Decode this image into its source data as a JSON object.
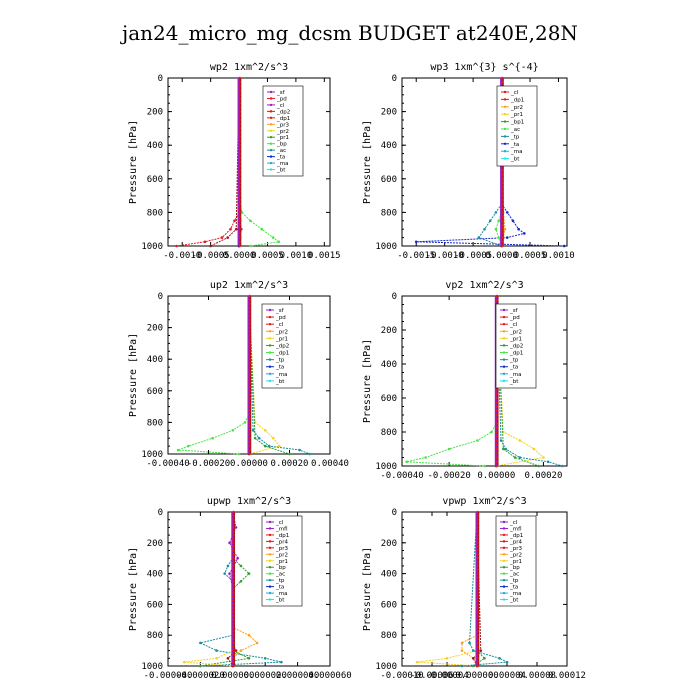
{
  "figure": {
    "title": "jan24_micro_mg_dcsm  BUDGET at240E,28N"
  },
  "colors": {
    "purple": "#9a1ec8",
    "red": "#e8141e",
    "orange": "#ff9f1c",
    "yellow": "#f5d21e",
    "green": "#2ea02e",
    "lightgreen": "#44e644",
    "teal": "#1a8fa0",
    "blue": "#1428c8",
    "skyblue": "#28a6e0",
    "navy": "#000080",
    "darkred": "#a01414",
    "cyan": "#1ee6e6"
  },
  "chart_data": [
    {
      "type": "line",
      "title": "wp2  1xm^2/s^3",
      "ylabel": "Pressure [hPa]",
      "ylim": [
        1000,
        0
      ],
      "yticks": [
        "0",
        "200",
        "400",
        "600",
        "800",
        "1000"
      ],
      "xlim": [
        -0.00125,
        0.0016
      ],
      "xticks": [
        -0.001,
        -0.0005,
        0.0,
        0.0005,
        0.001,
        0.0015
      ],
      "xtick_labels": [
        "-0.0010",
        "-0.0005",
        "0.0000",
        "0.0005",
        "0.0010",
        "0.0015"
      ],
      "legend": [
        "_sf",
        "_pd",
        "_cl",
        "_dp2",
        "_dp1",
        "_pr3",
        "_pr2",
        "_pr1",
        "_bp",
        "_ac",
        "_ta",
        "_ma",
        "_bt"
      ],
      "legend_colors": [
        "purple",
        "red",
        "purple",
        "red",
        "red",
        "orange",
        "yellow",
        "green",
        "lightgreen",
        "teal",
        "blue",
        "skyblue",
        "cyan"
      ],
      "series": [
        {
          "name": "_pr1",
          "color": "lightgreen",
          "p": [
            0,
            700,
            800,
            850,
            900,
            950,
            975,
            1000
          ],
          "values": [
            0,
            0,
            5e-05,
            0.0002,
            0.0004,
            0.0006,
            0.0007,
            0.0002
          ]
        },
        {
          "name": "_dp1",
          "color": "red",
          "p": [
            0,
            800,
            850,
            900,
            950,
            975,
            1000
          ],
          "values": [
            0,
            0,
            -8e-05,
            -0.00015,
            -0.0003,
            -0.0006,
            -0.0011
          ]
        },
        {
          "name": "_dp2",
          "color": "darkred",
          "p": [
            0,
            900,
            950,
            1000
          ],
          "values": [
            0,
            -5e-05,
            -0.0002,
            -0.0005
          ]
        },
        {
          "name": "_pd",
          "color": "purple",
          "p": [
            0,
            850,
            900,
            950,
            1000
          ],
          "values": [
            0,
            2e-05,
            4e-05,
            2e-05,
            0.0
          ]
        },
        {
          "name": "_bt",
          "color": "navy",
          "p": [
            0,
            1000
          ],
          "values": [
            0,
            0
          ]
        }
      ]
    },
    {
      "type": "line",
      "title": "wp3  1xm^{3} s^{-4}",
      "ylabel": "Pressure [hPa]",
      "ylim": [
        1000,
        0
      ],
      "yticks": [
        "0",
        "200",
        "400",
        "600",
        "800",
        "1000"
      ],
      "xlim": [
        -0.00175,
        0.00115
      ],
      "xticks": [
        -0.0015,
        -0.001,
        -0.0005,
        0.0,
        0.0005,
        0.001
      ],
      "xtick_labels": [
        "-0.0015",
        "-0.0010",
        "-0.0005",
        "0.0000",
        "0.0005",
        "0.0010"
      ],
      "legend": [
        "_cl",
        "_dp1",
        "_pr2",
        "_pr1",
        "_bp1",
        "_ac",
        "_tp",
        "_ta",
        "_ma",
        "_bt"
      ],
      "legend_colors": [
        "red",
        "red",
        "orange",
        "yellow",
        "green",
        "lightgreen",
        "teal",
        "blue",
        "skyblue",
        "cyan"
      ],
      "series": [
        {
          "name": "_ta",
          "color": "blue",
          "p": [
            0,
            750,
            800,
            850,
            900,
            925,
            950,
            975,
            1000
          ],
          "values": [
            0,
            0,
            0.0001,
            0.0002,
            0.0003,
            0.0004,
            0.0001,
            -0.0015,
            0.0011
          ]
        },
        {
          "name": "_tp",
          "color": "teal",
          "p": [
            0,
            750,
            800,
            850,
            900,
            950,
            1000
          ],
          "values": [
            0,
            0,
            -0.0001,
            -0.0002,
            -0.0003,
            -0.0004,
            0.0
          ]
        },
        {
          "name": "_ac",
          "color": "lightgreen",
          "p": [
            0,
            800,
            850,
            900,
            950,
            1000
          ],
          "values": [
            0,
            0,
            -5e-05,
            -0.0001,
            -5e-05,
            0.0
          ]
        },
        {
          "name": "_pr2",
          "color": "orange",
          "p": [
            0,
            800,
            900,
            950,
            1000
          ],
          "values": [
            0,
            3e-05,
            6e-05,
            3e-05,
            0.0
          ]
        },
        {
          "name": "_cl",
          "color": "darkred",
          "p": [
            0,
            1000
          ],
          "values": [
            0,
            0
          ]
        }
      ]
    },
    {
      "type": "line",
      "title": "up2  1xm^2/s^3",
      "ylabel": "Pressure [hPa]",
      "ylim": [
        1000,
        0
      ],
      "yticks": [
        "0",
        "200",
        "400",
        "600",
        "800",
        "1000"
      ],
      "xlim": [
        -0.0004,
        0.0004
      ],
      "xticks": [
        -0.0004,
        -0.0002,
        0.0,
        0.0002,
        0.0004
      ],
      "xtick_labels": [
        "-0.00040",
        "-0.00020",
        "0.00000",
        "0.00020",
        "0.00040"
      ],
      "legend": [
        "_sf",
        "_pd",
        "_cl",
        "_pr2",
        "_pr1",
        "_dp2",
        "_dp1",
        "_tp",
        "_ta",
        "_ma",
        "_bt"
      ],
      "legend_colors": [
        "purple",
        "red",
        "red",
        "orange",
        "yellow",
        "green",
        "lightgreen",
        "teal",
        "blue",
        "skyblue",
        "cyan"
      ],
      "series": [
        {
          "name": "_dp1",
          "color": "lightgreen",
          "p": [
            0,
            750,
            800,
            850,
            900,
            950,
            975,
            1000
          ],
          "values": [
            0,
            0,
            -2e-05,
            -8e-05,
            -0.00018,
            -0.0003,
            -0.00035,
            -5e-05
          ]
        },
        {
          "name": "_pr1",
          "color": "yellow",
          "p": [
            0,
            800,
            850,
            900,
            950,
            1000
          ],
          "values": [
            0,
            3e-05,
            8e-05,
            0.00012,
            0.00015,
            0.0
          ]
        },
        {
          "name": "_tp",
          "color": "teal",
          "p": [
            0,
            850,
            900,
            950,
            975,
            1000
          ],
          "values": [
            0,
            2e-05,
            5e-05,
            0.0001,
            0.00025,
            0.0003
          ]
        },
        {
          "name": "_dp2",
          "color": "green",
          "p": [
            0,
            900,
            950,
            1000
          ],
          "values": [
            0,
            3e-05,
            8e-05,
            0.0002
          ]
        },
        {
          "name": "_cl",
          "color": "darkred",
          "p": [
            0,
            1000
          ],
          "values": [
            0,
            0
          ]
        }
      ]
    },
    {
      "type": "line",
      "title": "vp2  1xm^2/s^3",
      "ylabel": "Pressure [hPa]",
      "ylim": [
        1000,
        0
      ],
      "yticks": [
        "0",
        "200",
        "400",
        "600",
        "800",
        "1000"
      ],
      "xlim": [
        -0.0004,
        0.0003
      ],
      "xticks": [
        -0.0004,
        -0.0002,
        0.0,
        0.0002
      ],
      "xtick_labels": [
        "-0.00040",
        "-0.00020",
        "0.00000",
        "0.00020"
      ],
      "legend": [
        "_sf",
        "_pd",
        "_cl",
        "_pr2",
        "_pr1",
        "_dp2",
        "_dp1",
        "_tp",
        "_ta",
        "_ma",
        "_bt"
      ],
      "legend_colors": [
        "purple",
        "red",
        "red",
        "orange",
        "yellow",
        "green",
        "lightgreen",
        "teal",
        "blue",
        "skyblue",
        "cyan"
      ],
      "series": [
        {
          "name": "_dp1",
          "color": "lightgreen",
          "p": [
            0,
            750,
            800,
            850,
            900,
            950,
            975,
            1000
          ],
          "values": [
            0,
            0,
            -2e-05,
            -8e-05,
            -0.0002,
            -0.0003,
            -0.00038,
            -5e-05
          ]
        },
        {
          "name": "_pr1",
          "color": "yellow",
          "p": [
            0,
            800,
            850,
            900,
            950,
            1000
          ],
          "values": [
            0,
            3e-05,
            0.0001,
            0.00016,
            0.0002,
            0.0
          ]
        },
        {
          "name": "_tp",
          "color": "teal",
          "p": [
            0,
            850,
            900,
            950,
            975,
            1000
          ],
          "values": [
            0,
            2e-05,
            4e-05,
            0.0001,
            0.00022,
            0.00028
          ]
        },
        {
          "name": "_dp2",
          "color": "green",
          "p": [
            0,
            900,
            950,
            1000
          ],
          "values": [
            0,
            3e-05,
            8e-05,
            0.00018
          ]
        },
        {
          "name": "_cl",
          "color": "darkred",
          "p": [
            0,
            1000
          ],
          "values": [
            0,
            0
          ]
        }
      ]
    },
    {
      "type": "line",
      "title": "upwp  1xm^2/s^3",
      "ylabel": "Pressure [hPa]",
      "ylim": [
        1000,
        0
      ],
      "yticks": [
        "0",
        "200",
        "400",
        "600",
        "800",
        "1000"
      ],
      "xlim": [
        -4e-05,
        6e-05
      ],
      "xticks": [
        -4e-05,
        -2e-05,
        0.0,
        2e-05,
        4e-05,
        6e-05
      ],
      "xtick_labels": [
        "-0.000040",
        "-0.000020",
        "0.000000",
        "0.000020",
        "0.000040",
        "0.000060"
      ],
      "legend": [
        "_cl",
        "_mfl",
        "_dp1",
        "_pr4",
        "_pr3",
        "_pr2",
        "_pr1",
        "_bp",
        "_ac",
        "_tp",
        "_ta",
        "_ma",
        "_bt"
      ],
      "legend_colors": [
        "purple",
        "purple",
        "red",
        "red",
        "red",
        "orange",
        "yellow",
        "green",
        "lightgreen",
        "teal",
        "blue",
        "skyblue",
        "cyan"
      ],
      "series": [
        {
          "name": "_ta",
          "color": "teal",
          "p": [
            0,
            300,
            350,
            400,
            450,
            800,
            850,
            900,
            950,
            975,
            1000
          ],
          "values": [
            0,
            0,
            -3e-06,
            -5e-06,
            0,
            0,
            -2e-05,
            -1e-05,
            2e-05,
            3e-05,
            -2e-05
          ]
        },
        {
          "name": "_ac",
          "color": "green",
          "p": [
            0,
            300,
            350,
            400,
            450,
            500,
            900,
            950,
            1000
          ],
          "values": [
            0,
            0,
            5e-06,
            1e-05,
            5e-06,
            0,
            0,
            1e-05,
            -2e-05
          ]
        },
        {
          "name": "_pr2",
          "color": "orange",
          "p": [
            0,
            750,
            800,
            850,
            900,
            950,
            1000
          ],
          "values": [
            0,
            0,
            1e-05,
            1.5e-05,
            5e-06,
            0,
            0
          ]
        },
        {
          "name": "_pr1",
          "color": "yellow",
          "p": [
            0,
            900,
            950,
            975,
            1000
          ],
          "values": [
            0,
            0,
            -1e-05,
            -3e-05,
            0
          ]
        },
        {
          "name": "_mfl",
          "color": "purple",
          "p": [
            0,
            100,
            200,
            300,
            400,
            500,
            1000
          ],
          "values": [
            0,
            2e-06,
            -2e-06,
            3e-06,
            -2e-06,
            0,
            0
          ]
        },
        {
          "name": "_cl",
          "color": "darkred",
          "p": [
            0,
            850,
            900,
            950,
            1000
          ],
          "values": [
            0,
            0,
            2e-06,
            -3e-06,
            0
          ]
        }
      ]
    },
    {
      "type": "line",
      "title": "vpwp  1xm^2/s^3",
      "ylabel": "Pressure [hPa]",
      "ylim": [
        1000,
        0
      ],
      "yticks": [
        "0",
        "200",
        "400",
        "600",
        "800",
        "1000"
      ],
      "xlim": [
        -0.0001,
        0.00012
      ],
      "xticks": [
        -0.0001,
        -6e-05,
        -4e-05,
        0.0,
        4e-05,
        8e-05,
        0.00012
      ],
      "xtick_labels": [
        "-0.00010",
        "-0.00006",
        "-0.00004",
        "0.000000",
        "0.00004",
        "0.00008",
        "0.00012"
      ],
      "legend": [
        "_cl",
        "_mfl",
        "_dp1",
        "_pr4",
        "_pr3",
        "_pr2",
        "_pr1",
        "_bp",
        "_ac",
        "_tp",
        "_ta",
        "_ma",
        "_bt"
      ],
      "legend_colors": [
        "purple",
        "purple",
        "red",
        "red",
        "red",
        "orange",
        "yellow",
        "green",
        "lightgreen",
        "teal",
        "blue",
        "skyblue",
        "cyan"
      ],
      "series": [
        {
          "name": "_pr2",
          "color": "orange",
          "p": [
            0,
            800,
            850,
            900,
            950,
            1000
          ],
          "values": [
            0,
            0,
            -2e-05,
            -2e-05,
            -5e-06,
            0
          ]
        },
        {
          "name": "_pr1",
          "color": "yellow",
          "p": [
            0,
            900,
            950,
            975,
            1000
          ],
          "values": [
            0,
            0,
            -4e-05,
            -8e-05,
            0
          ]
        },
        {
          "name": "_ta",
          "color": "teal",
          "p": [
            0,
            850,
            900,
            950,
            975,
            1000
          ],
          "values": [
            0,
            -1e-05,
            -5e-06,
            3e-05,
            4e-05,
            -2e-05
          ]
        },
        {
          "name": "_ac",
          "color": "green",
          "p": [
            0,
            900,
            950,
            1000
          ],
          "values": [
            0,
            0,
            1e-05,
            -5e-06
          ]
        },
        {
          "name": "_cl",
          "color": "darkred",
          "p": [
            0,
            900,
            950,
            1000
          ],
          "values": [
            0,
            5e-06,
            -5e-06,
            0
          ]
        }
      ]
    }
  ]
}
